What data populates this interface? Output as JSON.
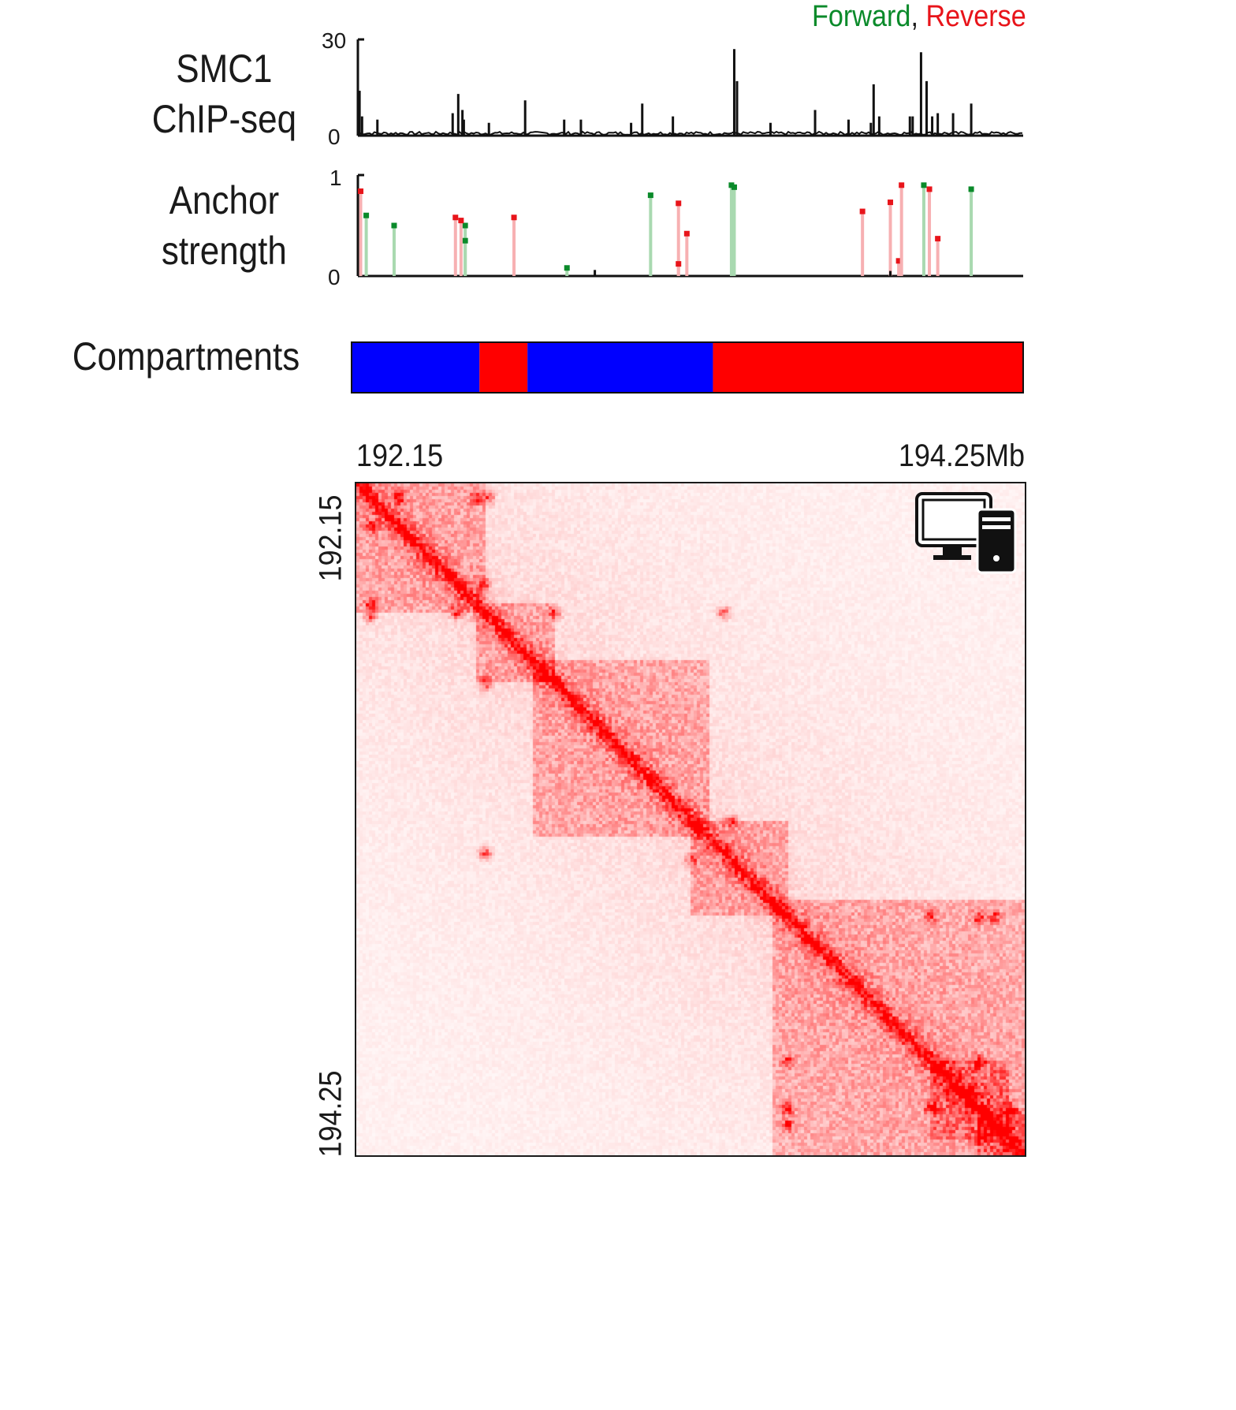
{
  "legend": {
    "forward": "Forward",
    "separator": ",",
    "reverse": "Reverse",
    "forward_color": "#0a8a2a",
    "reverse_color": "#e8141a"
  },
  "tracks": {
    "chip": {
      "label_line1": "SMC1",
      "label_line2": "ChIP-seq",
      "ymax_label": "30",
      "ymin_label": "0"
    },
    "anchor": {
      "label_line1": "Anchor",
      "label_line2": "strength",
      "ymax_label": "1",
      "ymin_label": "0"
    },
    "compartments": {
      "label": "Compartments",
      "a_color": "#0000ff",
      "b_color": "#ff0000"
    }
  },
  "heatmap": {
    "x_start_label": "192.15",
    "x_end_label": "194.25Mb",
    "y_start_label": "192.15",
    "y_end_label": "194.25",
    "color": "#ff0000",
    "icon": "computer-tower-icon"
  },
  "chart_data": [
    {
      "type": "bar",
      "name": "SMC1 ChIP-seq",
      "xlim": [
        192.15,
        194.25
      ],
      "ylim": [
        0,
        30
      ],
      "peaks": [
        [
          192.156,
          14
        ],
        [
          192.165,
          6
        ],
        [
          192.22,
          5
        ],
        [
          192.49,
          7
        ],
        [
          192.51,
          13
        ],
        [
          192.525,
          8
        ],
        [
          192.53,
          5
        ],
        [
          192.62,
          4
        ],
        [
          192.75,
          11
        ],
        [
          192.89,
          5
        ],
        [
          192.95,
          5
        ],
        [
          193.13,
          4
        ],
        [
          193.17,
          10
        ],
        [
          193.28,
          6
        ],
        [
          193.5,
          27
        ],
        [
          193.51,
          17
        ],
        [
          193.63,
          4
        ],
        [
          193.79,
          8
        ],
        [
          193.91,
          5
        ],
        [
          193.99,
          4
        ],
        [
          194.0,
          16
        ],
        [
          194.02,
          6
        ],
        [
          194.13,
          6
        ],
        [
          194.14,
          6
        ],
        [
          194.17,
          26
        ],
        [
          194.19,
          17
        ],
        [
          194.21,
          6
        ],
        [
          194.23,
          7
        ],
        [
          194.285,
          7
        ],
        [
          194.35,
          10
        ]
      ]
    },
    {
      "type": "scatter",
      "name": "Anchor strength",
      "xlim": [
        192.15,
        194.25
      ],
      "ylim": [
        0,
        1
      ],
      "forward": [
        [
          192.18,
          0.6
        ],
        [
          192.28,
          0.5
        ],
        [
          192.535,
          0.5
        ],
        [
          192.535,
          0.35
        ],
        [
          192.9,
          0.08
        ],
        [
          193.2,
          0.8
        ],
        [
          193.49,
          0.9
        ],
        [
          193.5,
          0.88
        ],
        [
          194.18,
          0.9
        ],
        [
          194.35,
          0.86
        ]
      ],
      "reverse": [
        [
          192.16,
          0.84
        ],
        [
          192.5,
          0.58
        ],
        [
          192.52,
          0.55
        ],
        [
          192.71,
          0.58
        ],
        [
          193.3,
          0.72
        ],
        [
          193.3,
          0.12
        ],
        [
          193.33,
          0.42
        ],
        [
          193.96,
          0.64
        ],
        [
          194.06,
          0.73
        ],
        [
          194.09,
          0.15
        ],
        [
          194.1,
          0.9
        ],
        [
          194.2,
          0.86
        ],
        [
          194.23,
          0.37
        ]
      ],
      "background": [
        [
          193.0,
          0.06
        ],
        [
          194.06,
          0.05
        ]
      ]
    },
    {
      "type": "heatmap",
      "name": "Compartments",
      "segments": [
        {
          "start": 192.15,
          "end": 192.55,
          "compartment": "A"
        },
        {
          "start": 192.55,
          "end": 192.7,
          "compartment": "B"
        },
        {
          "start": 192.7,
          "end": 193.28,
          "compartment": "A"
        },
        {
          "start": 193.28,
          "end": 194.25,
          "compartment": "B"
        }
      ]
    },
    {
      "type": "heatmap",
      "name": "Hi-C contact map",
      "xlim": [
        192.15,
        194.25
      ],
      "ylim": [
        192.15,
        194.25
      ],
      "domains": [
        [
          192.15,
          192.55
        ],
        [
          192.52,
          192.77
        ],
        [
          192.7,
          193.25
        ],
        [
          193.2,
          193.5
        ],
        [
          193.45,
          194.25
        ],
        [
          193.95,
          194.2
        ],
        [
          194.1,
          194.25
        ]
      ],
      "loops": [
        [
          192.19,
          192.52
        ],
        [
          192.19,
          192.56
        ],
        [
          192.46,
          192.55
        ],
        [
          192.55,
          192.77
        ],
        [
          192.55,
          193.3
        ],
        [
          193.2,
          193.32
        ],
        [
          193.5,
          193.95
        ],
        [
          193.5,
          194.1
        ],
        [
          193.5,
          194.15
        ],
        [
          193.95,
          194.1
        ],
        [
          194.1,
          194.2
        ],
        [
          192.19,
          192.28
        ]
      ]
    }
  ]
}
